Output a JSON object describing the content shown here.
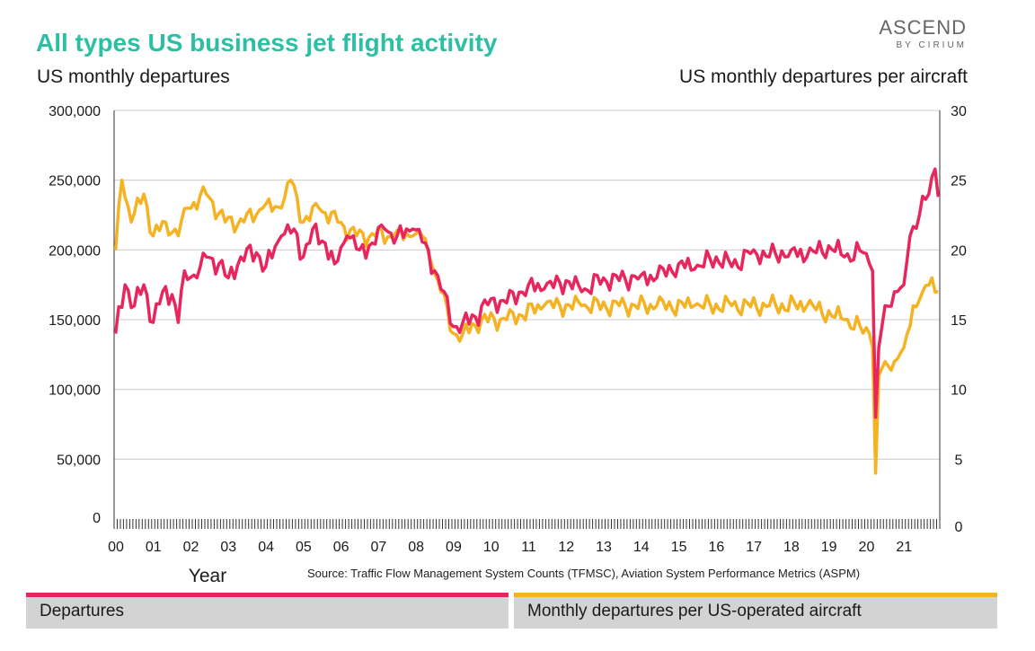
{
  "header": {
    "title": "All types US business jet flight activity",
    "brand_name": "ASCEND",
    "brand_sub": "BY CIRIUM"
  },
  "source": "Source: Traffic Flow Management System Counts (TFMSC), Aviation System Performance Metrics (ASPM)",
  "chart_data": {
    "type": "line",
    "ylabel_left": "US monthly departures",
    "ylabel_right": "US monthly departures per aircraft",
    "xlabel": "Year",
    "x_tick_labels": [
      "00",
      "01",
      "02",
      "03",
      "04",
      "05",
      "06",
      "07",
      "08",
      "09",
      "10",
      "11",
      "12",
      "13",
      "14",
      "15",
      "16",
      "17",
      "18",
      "19",
      "20",
      "21"
    ],
    "x_range": [
      "2000-01",
      "2021-12"
    ],
    "ylim_left": [
      0,
      300000
    ],
    "yticks_left": [
      "0",
      "50,000",
      "100,000",
      "150,000",
      "200,000",
      "250,000",
      "300,000"
    ],
    "ylim_right": [
      0,
      30
    ],
    "yticks_right": [
      "0",
      "5",
      "10",
      "15",
      "20",
      "25",
      "30"
    ],
    "grid": "horizontal",
    "legend_position": "bottom",
    "colors": {
      "departures": "#e8265e",
      "per_aircraft": "#f5b323",
      "grid": "#cccccc"
    },
    "series": [
      {
        "name": "Departures",
        "axis": "left",
        "color": "#e8265e",
        "anchors": [
          [
            "2000-01",
            140000
          ],
          [
            "2000-04",
            175000
          ],
          [
            "2000-07",
            160000
          ],
          [
            "2000-10",
            175000
          ],
          [
            "2001-01",
            148000
          ],
          [
            "2001-04",
            170000
          ],
          [
            "2001-07",
            168000
          ],
          [
            "2001-09",
            148000
          ],
          [
            "2001-11",
            185000
          ],
          [
            "2002-03",
            180000
          ],
          [
            "2002-06",
            195000
          ],
          [
            "2002-10",
            190000
          ],
          [
            "2003-01",
            180000
          ],
          [
            "2003-05",
            195000
          ],
          [
            "2003-10",
            198000
          ],
          [
            "2004-01",
            188000
          ],
          [
            "2004-06",
            210000
          ],
          [
            "2004-10",
            215000
          ],
          [
            "2005-01",
            195000
          ],
          [
            "2005-04",
            215000
          ],
          [
            "2005-08",
            205000
          ],
          [
            "2005-11",
            190000
          ],
          [
            "2006-03",
            210000
          ],
          [
            "2006-07",
            200000
          ],
          [
            "2006-11",
            205000
          ],
          [
            "2007-03",
            215000
          ],
          [
            "2007-07",
            210000
          ],
          [
            "2007-12",
            215000
          ],
          [
            "2008-04",
            205000
          ],
          [
            "2008-07",
            185000
          ],
          [
            "2008-10",
            170000
          ],
          [
            "2009-01",
            145000
          ],
          [
            "2009-04",
            148000
          ],
          [
            "2009-08",
            152000
          ],
          [
            "2010-01",
            165000
          ],
          [
            "2010-06",
            162000
          ],
          [
            "2011-01",
            175000
          ],
          [
            "2011-06",
            172000
          ],
          [
            "2012-01",
            178000
          ],
          [
            "2012-06",
            170000
          ],
          [
            "2013-01",
            180000
          ],
          [
            "2013-06",
            178000
          ],
          [
            "2014-01",
            182000
          ],
          [
            "2014-06",
            180000
          ],
          [
            "2015-01",
            190000
          ],
          [
            "2015-06",
            186000
          ],
          [
            "2016-01",
            195000
          ],
          [
            "2016-06",
            188000
          ],
          [
            "2017-01",
            200000
          ],
          [
            "2017-06",
            195000
          ],
          [
            "2018-01",
            200000
          ],
          [
            "2018-06",
            195000
          ],
          [
            "2019-01",
            203000
          ],
          [
            "2019-06",
            195000
          ],
          [
            "2019-12",
            198000
          ],
          [
            "2020-02",
            190000
          ],
          [
            "2020-03",
            185000
          ],
          [
            "2020-04",
            80000
          ],
          [
            "2020-05",
            130000
          ],
          [
            "2020-07",
            160000
          ],
          [
            "2020-10",
            170000
          ],
          [
            "2021-01",
            175000
          ],
          [
            "2021-03",
            210000
          ],
          [
            "2021-06",
            225000
          ],
          [
            "2021-09",
            240000
          ],
          [
            "2021-11",
            258000
          ],
          [
            "2021-12",
            238000
          ]
        ]
      },
      {
        "name": "Monthly departures per US-operated aircraft",
        "axis": "right",
        "color": "#f5b323",
        "anchors": [
          [
            "2000-01",
            20
          ],
          [
            "2000-03",
            25
          ],
          [
            "2000-06",
            22
          ],
          [
            "2000-10",
            24
          ],
          [
            "2001-01",
            21
          ],
          [
            "2001-05",
            22
          ],
          [
            "2001-09",
            21
          ],
          [
            "2001-12",
            23
          ],
          [
            "2002-06",
            24
          ],
          [
            "2002-12",
            22
          ],
          [
            "2003-06",
            22
          ],
          [
            "2003-12",
            23
          ],
          [
            "2004-06",
            23
          ],
          [
            "2004-09",
            25
          ],
          [
            "2005-01",
            22
          ],
          [
            "2005-06",
            23
          ],
          [
            "2005-12",
            22
          ],
          [
            "2006-06",
            21
          ],
          [
            "2006-12",
            21
          ],
          [
            "2007-06",
            21
          ],
          [
            "2007-12",
            21
          ],
          [
            "2008-03",
            21
          ],
          [
            "2008-06",
            19
          ],
          [
            "2008-09",
            17
          ],
          [
            "2009-01",
            14
          ],
          [
            "2009-04",
            14
          ],
          [
            "2009-10",
            15
          ],
          [
            "2010-06",
            15
          ],
          [
            "2011-06",
            16
          ],
          [
            "2012-06",
            16
          ],
          [
            "2013-06",
            16
          ],
          [
            "2014-06",
            16
          ],
          [
            "2015-06",
            16
          ],
          [
            "2016-06",
            16
          ],
          [
            "2017-06",
            16
          ],
          [
            "2018-06",
            16
          ],
          [
            "2019-06",
            15
          ],
          [
            "2020-02",
            14
          ],
          [
            "2020-03",
            13
          ],
          [
            "2020-04",
            4
          ],
          [
            "2020-05",
            11
          ],
          [
            "2020-07",
            12
          ],
          [
            "2020-10",
            12
          ],
          [
            "2021-01",
            13
          ],
          [
            "2021-04",
            16
          ],
          [
            "2021-07",
            17
          ],
          [
            "2021-10",
            18
          ],
          [
            "2021-12",
            17
          ]
        ]
      }
    ]
  },
  "legend": [
    {
      "label": "Departures",
      "color": "#e8265e"
    },
    {
      "label": "Monthly departures per US-operated aircraft",
      "color": "#f5b323"
    }
  ]
}
